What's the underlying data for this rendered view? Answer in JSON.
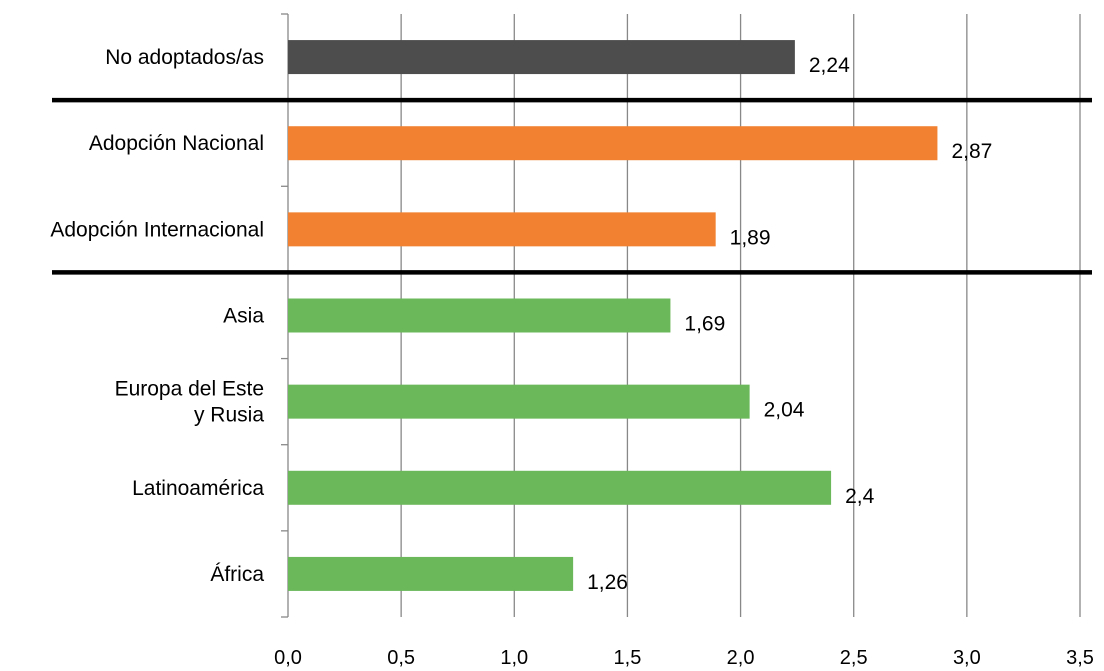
{
  "chart_data": {
    "type": "bar",
    "orientation": "horizontal",
    "categories": [
      [
        "No adoptados/as"
      ],
      [
        "Adopción Nacional"
      ],
      [
        "Adopción Internacional"
      ],
      [
        "Asia"
      ],
      [
        "Europa del Este",
        "y Rusia"
      ],
      [
        "Latinoamérica"
      ],
      [
        "África"
      ]
    ],
    "values": [
      2.24,
      2.87,
      1.89,
      1.69,
      2.04,
      2.4,
      1.26
    ],
    "value_labels": [
      "2,24",
      "2,87",
      "1,89",
      "1,69",
      "2,04",
      "2,4",
      "1,26"
    ],
    "bar_colors": [
      "#4d4d4d",
      "#f28232",
      "#f28232",
      "#6bb85a",
      "#6bb85a",
      "#6bb85a",
      "#6bb85a"
    ],
    "xlim": [
      0,
      3.5
    ],
    "x_ticks": [
      0,
      0.5,
      1.0,
      1.5,
      2.0,
      2.5,
      3.0,
      3.5
    ],
    "x_tick_labels": [
      "0,0",
      "0,5",
      "1,0",
      "1,5",
      "2,0",
      "2,5",
      "3,0",
      "3,5"
    ],
    "vertical_grid": true,
    "group_separators_after_rows": [
      0,
      2
    ],
    "title": "",
    "xlabel": "",
    "ylabel": ""
  }
}
